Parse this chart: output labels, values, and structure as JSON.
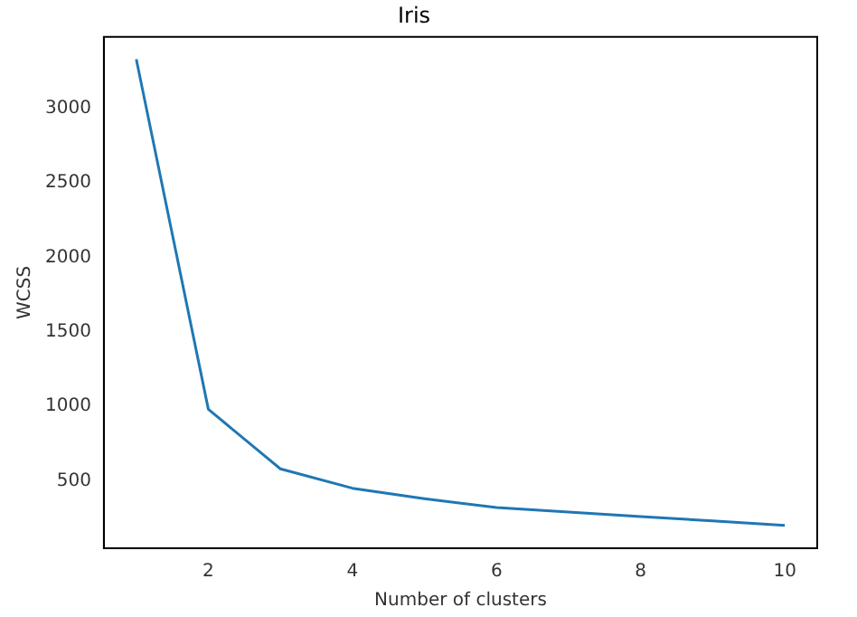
{
  "chart_data": {
    "type": "line",
    "title": "Iris",
    "xlabel": "Number of clusters",
    "ylabel": "WCSS",
    "x": [
      1,
      2,
      3,
      4,
      5,
      6,
      7,
      8,
      9,
      10
    ],
    "series": [
      {
        "color": "#1f77b4",
        "values": [
          3330,
          980,
          580,
          450,
          380,
          320,
          290,
          260,
          230,
          200
        ]
      }
    ],
    "xlim": [
      0.55,
      10.45
    ],
    "xticks": [
      2,
      4,
      6,
      8,
      10
    ],
    "ylim": [
      47,
      3480
    ],
    "yticks": [
      500,
      1000,
      1500,
      2000,
      2500,
      3000
    ],
    "grid": false,
    "legend": false,
    "marker": "none",
    "line_style": "solid"
  }
}
